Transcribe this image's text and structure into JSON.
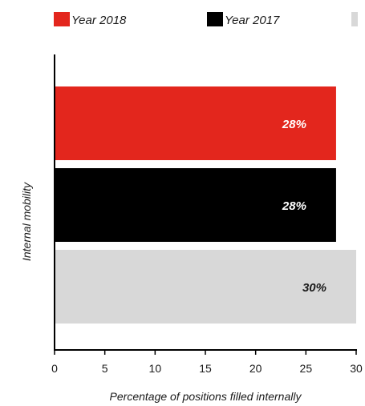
{
  "chart_data": {
    "type": "bar",
    "orientation": "horizontal",
    "xlabel": "Percentage of positions filled internally",
    "ylabel": "Internal mobility",
    "xlim": [
      0,
      30
    ],
    "xticks": [
      0,
      5,
      10,
      15,
      20,
      25,
      30
    ],
    "grid": false,
    "legend_position": "top",
    "series": [
      {
        "name": "Year 2018",
        "value": 28,
        "label": "28%",
        "color": "#e3261d",
        "label_color": "#ffffff"
      },
      {
        "name": "Year 2017",
        "value": 28,
        "label": "28%",
        "color": "#000000",
        "label_color": "#ffffff"
      },
      {
        "name": "",
        "value": 30,
        "label": "30%",
        "color": "#d8d8d8",
        "label_color": "#1a1a1a"
      }
    ]
  }
}
